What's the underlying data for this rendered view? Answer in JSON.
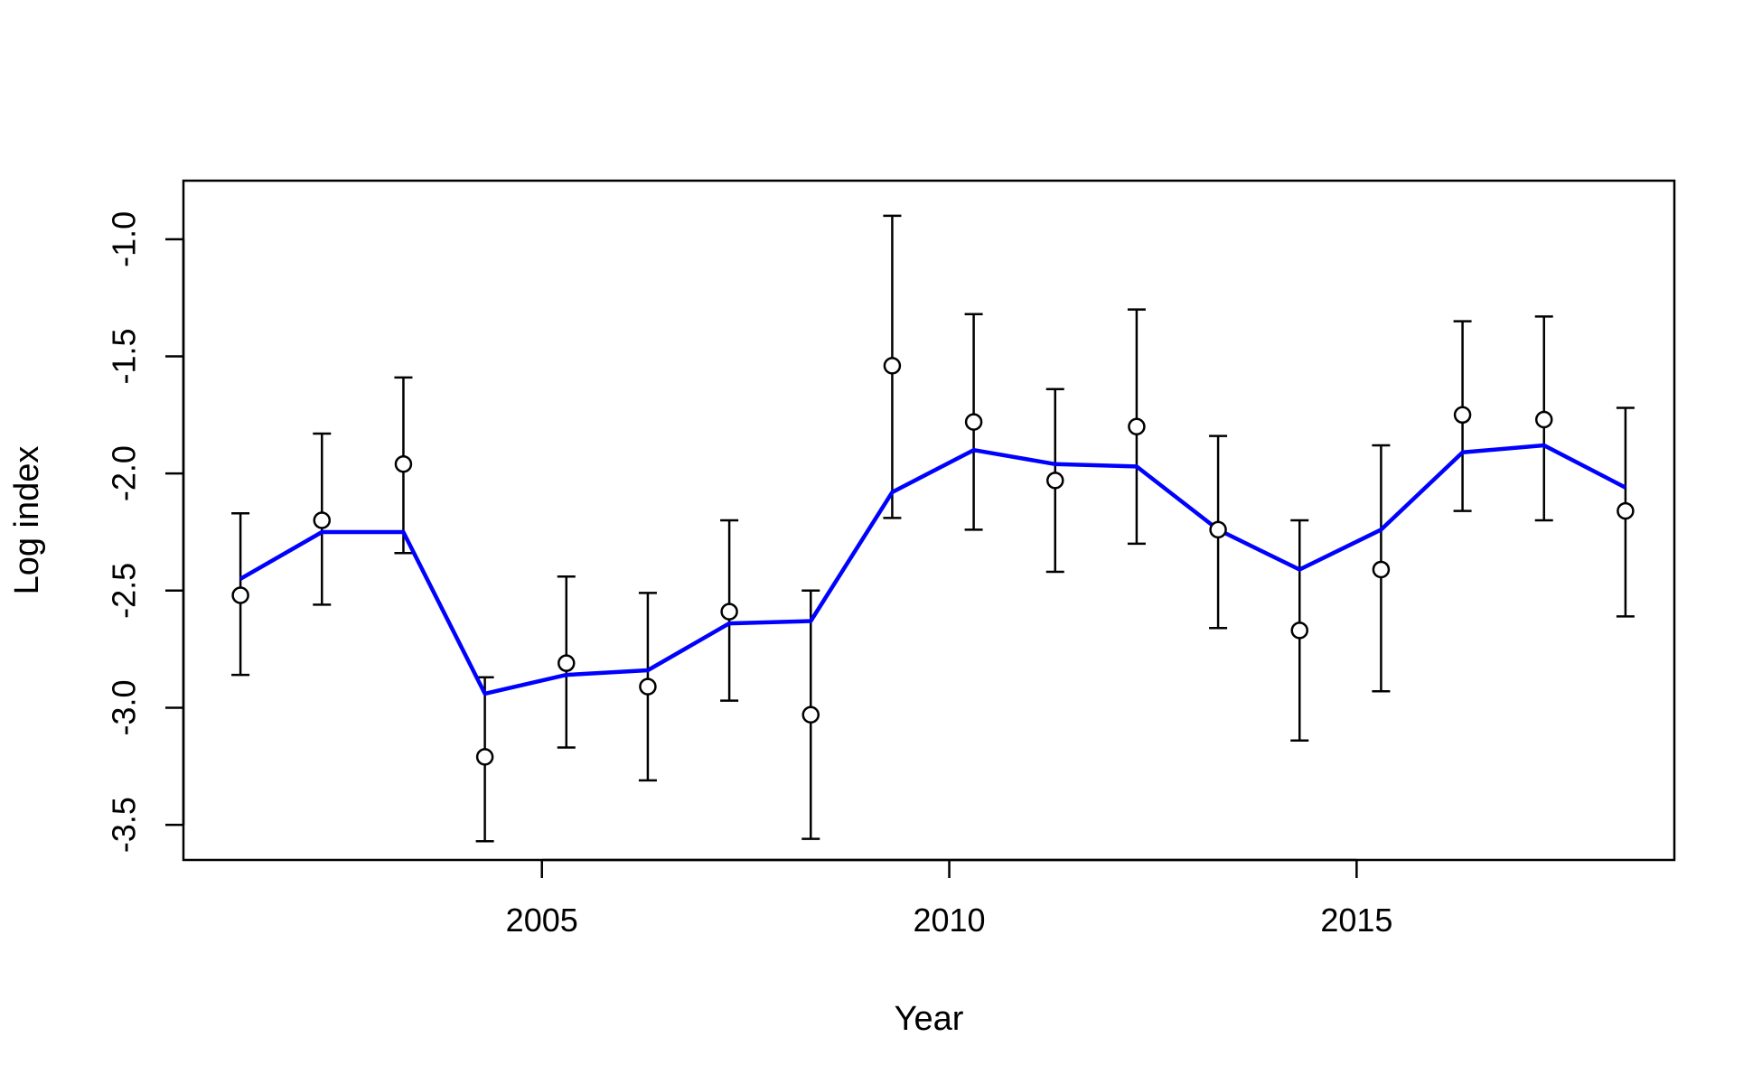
{
  "chart_data": {
    "type": "line",
    "title": "",
    "xlabel": "Year",
    "ylabel": "Log index",
    "xlim": [
      2000.6,
      2018.9
    ],
    "ylim": [
      -3.65,
      -0.75
    ],
    "x_ticks": [
      2005,
      2010,
      2015
    ],
    "y_ticks": [
      -3.5,
      -3.0,
      -2.5,
      -2.0,
      -1.5,
      -1.0
    ],
    "x_tick_labels": [
      "2005",
      "2010",
      "2015"
    ],
    "y_tick_labels": [
      "-3.5",
      "-3.0",
      "-2.5",
      "-2.0",
      "-1.5",
      "-1.0"
    ],
    "grid": false,
    "legend": "none",
    "x": [
      2001.3,
      2002.3,
      2003.3,
      2004.3,
      2005.3,
      2006.3,
      2007.3,
      2008.3,
      2009.3,
      2010.3,
      2011.3,
      2012.3,
      2013.3,
      2014.3,
      2015.3,
      2016.3,
      2017.3,
      2018.3
    ],
    "series": [
      {
        "kind": "observed_points",
        "marker": "open-circle",
        "color": "#000000",
        "values": [
          -2.52,
          -2.2,
          -1.96,
          -3.21,
          -2.81,
          -2.91,
          -2.59,
          -3.03,
          -1.54,
          -1.78,
          -2.03,
          -1.8,
          -2.24,
          -2.67,
          -2.41,
          -1.75,
          -1.77,
          -2.16
        ],
        "lower": [
          -2.86,
          -2.56,
          -2.34,
          -3.57,
          -3.17,
          -3.31,
          -2.97,
          -3.56,
          -2.19,
          -2.24,
          -2.42,
          -2.3,
          -2.66,
          -3.14,
          -2.93,
          -2.16,
          -2.2,
          -2.61
        ],
        "upper": [
          -2.17,
          -1.83,
          -1.59,
          -2.87,
          -2.44,
          -2.51,
          -2.2,
          -2.5,
          -0.9,
          -1.32,
          -1.64,
          -1.3,
          -1.84,
          -2.2,
          -1.88,
          -1.35,
          -1.33,
          -1.72
        ]
      },
      {
        "kind": "fitted_line",
        "color": "#0000ff",
        "values": [
          -2.45,
          -2.25,
          -2.25,
          -2.94,
          -2.86,
          -2.84,
          -2.64,
          -2.63,
          -2.08,
          -1.9,
          -1.96,
          -1.97,
          -2.24,
          -2.41,
          -2.24,
          -1.91,
          -1.88,
          -2.06
        ]
      }
    ]
  }
}
